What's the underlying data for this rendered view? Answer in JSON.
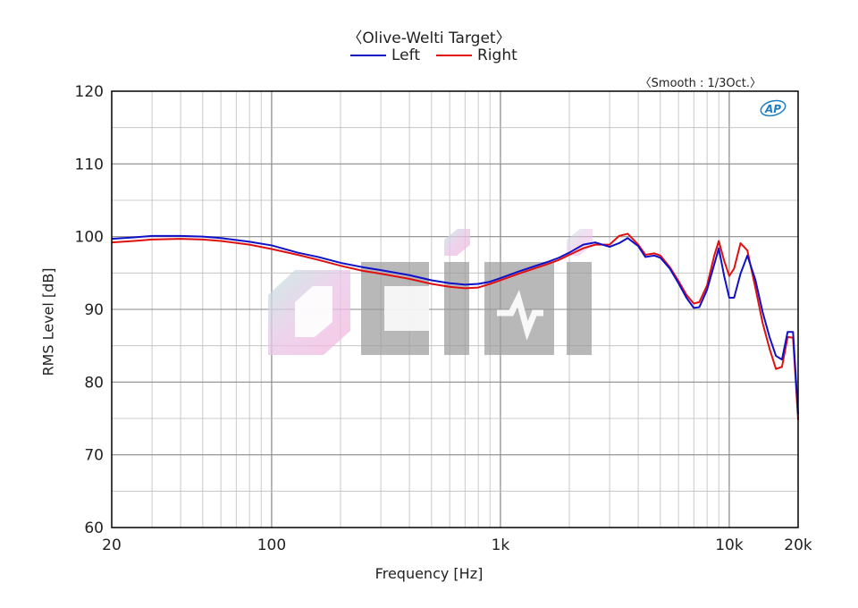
{
  "chart_data": {
    "type": "line",
    "title": "〈Olive-Welti Target〉",
    "annotation": "〈Smooth : 1/3Oct.〉",
    "xlabel": "Frequency [Hz]",
    "ylabel": "RMS Level [dB]",
    "xscale": "log",
    "xlim": [
      20,
      20000
    ],
    "ylim": [
      60,
      120
    ],
    "xticks": [
      {
        "value": 20,
        "label": "20"
      },
      {
        "value": 100,
        "label": "100"
      },
      {
        "value": 1000,
        "label": "1k"
      },
      {
        "value": 10000,
        "label": "10k"
      },
      {
        "value": 20000,
        "label": "20k"
      }
    ],
    "yticks": [
      60,
      70,
      80,
      90,
      100,
      110,
      120
    ],
    "grid": true,
    "legend_position": "top-center",
    "colors": {
      "left": "#1010c8",
      "right": "#e01010",
      "grid": "#bdbdbd",
      "watermark": "#9a9a9a",
      "logo": "#1f7fc4"
    },
    "watermark_icon": "dhifi-watermark",
    "logo_text": "AP",
    "series": [
      {
        "name": "Left",
        "color": "#1010c8",
        "points": [
          [
            20,
            99.7
          ],
          [
            25,
            99.9
          ],
          [
            30,
            100.1
          ],
          [
            40,
            100.1
          ],
          [
            50,
            100.0
          ],
          [
            60,
            99.8
          ],
          [
            80,
            99.3
          ],
          [
            100,
            98.8
          ],
          [
            130,
            97.8
          ],
          [
            160,
            97.2
          ],
          [
            200,
            96.4
          ],
          [
            250,
            95.8
          ],
          [
            300,
            95.4
          ],
          [
            400,
            94.7
          ],
          [
            500,
            94.0
          ],
          [
            600,
            93.6
          ],
          [
            700,
            93.4
          ],
          [
            800,
            93.5
          ],
          [
            900,
            93.8
          ],
          [
            1000,
            94.3
          ],
          [
            1200,
            95.2
          ],
          [
            1400,
            95.9
          ],
          [
            1600,
            96.5
          ],
          [
            1800,
            97.1
          ],
          [
            2000,
            97.8
          ],
          [
            2300,
            98.9
          ],
          [
            2600,
            99.2
          ],
          [
            3000,
            98.6
          ],
          [
            3300,
            99.1
          ],
          [
            3600,
            99.8
          ],
          [
            4000,
            98.7
          ],
          [
            4300,
            97.2
          ],
          [
            4700,
            97.4
          ],
          [
            5000,
            97.1
          ],
          [
            5500,
            95.6
          ],
          [
            6000,
            93.6
          ],
          [
            6500,
            91.6
          ],
          [
            7000,
            90.2
          ],
          [
            7400,
            90.3
          ],
          [
            8000,
            92.7
          ],
          [
            8600,
            96.2
          ],
          [
            9000,
            98.4
          ],
          [
            9500,
            94.6
          ],
          [
            10000,
            91.6
          ],
          [
            10500,
            91.6
          ],
          [
            11200,
            94.9
          ],
          [
            12000,
            97.4
          ],
          [
            13000,
            94.1
          ],
          [
            14000,
            89.6
          ],
          [
            15000,
            86.2
          ],
          [
            16000,
            83.6
          ],
          [
            17000,
            83.1
          ],
          [
            18000,
            86.9
          ],
          [
            19000,
            86.9
          ],
          [
            20000,
            75.6
          ]
        ]
      },
      {
        "name": "Right",
        "color": "#e01010",
        "points": [
          [
            20,
            99.2
          ],
          [
            25,
            99.4
          ],
          [
            30,
            99.6
          ],
          [
            40,
            99.7
          ],
          [
            50,
            99.6
          ],
          [
            60,
            99.4
          ],
          [
            80,
            98.9
          ],
          [
            100,
            98.3
          ],
          [
            130,
            97.5
          ],
          [
            160,
            96.8
          ],
          [
            200,
            96.0
          ],
          [
            250,
            95.3
          ],
          [
            300,
            94.9
          ],
          [
            400,
            94.2
          ],
          [
            500,
            93.5
          ],
          [
            600,
            93.1
          ],
          [
            700,
            92.9
          ],
          [
            800,
            93.0
          ],
          [
            900,
            93.5
          ],
          [
            1000,
            94.0
          ],
          [
            1200,
            94.9
          ],
          [
            1400,
            95.6
          ],
          [
            1600,
            96.2
          ],
          [
            1800,
            96.8
          ],
          [
            2000,
            97.5
          ],
          [
            2300,
            98.4
          ],
          [
            2600,
            98.9
          ],
          [
            3000,
            98.9
          ],
          [
            3300,
            100.1
          ],
          [
            3600,
            100.4
          ],
          [
            4000,
            98.9
          ],
          [
            4300,
            97.5
          ],
          [
            4700,
            97.7
          ],
          [
            5000,
            97.4
          ],
          [
            5500,
            95.8
          ],
          [
            6000,
            93.9
          ],
          [
            6500,
            92.0
          ],
          [
            7000,
            90.8
          ],
          [
            7400,
            91.0
          ],
          [
            8000,
            93.3
          ],
          [
            8600,
            97.4
          ],
          [
            9000,
            99.4
          ],
          [
            9500,
            96.7
          ],
          [
            10000,
            94.6
          ],
          [
            10500,
            95.6
          ],
          [
            11200,
            99.1
          ],
          [
            12000,
            98.1
          ],
          [
            13000,
            93.0
          ],
          [
            14000,
            88.1
          ],
          [
            15000,
            84.6
          ],
          [
            16000,
            81.8
          ],
          [
            17000,
            82.1
          ],
          [
            18000,
            86.2
          ],
          [
            19000,
            86.1
          ],
          [
            20000,
            74.8
          ]
        ]
      }
    ]
  }
}
